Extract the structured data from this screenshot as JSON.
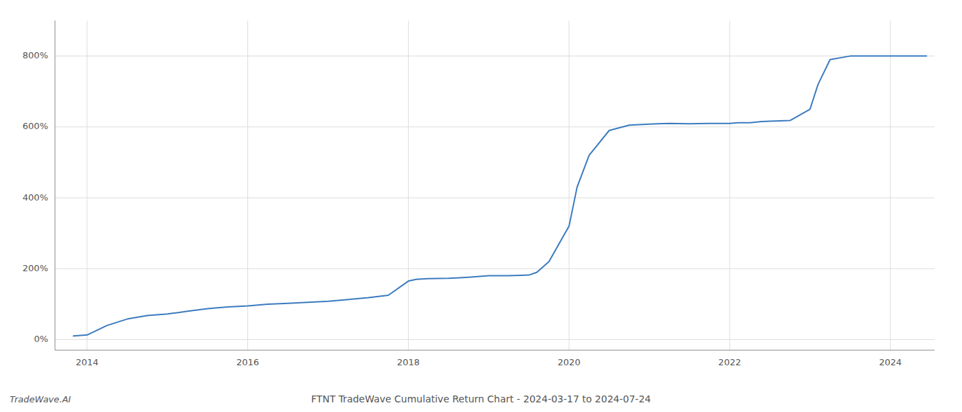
{
  "chart_data": {
    "type": "line",
    "title": "FTNT TradeWave Cumulative Return Chart - 2024-03-17 to 2024-07-24",
    "annotations": [
      "TradeWave.AI"
    ],
    "color": "#3a7abf",
    "grid": true,
    "x": [
      2013.83,
      2014.0,
      2014.25,
      2014.5,
      2014.75,
      2015.0,
      2015.25,
      2015.5,
      2015.75,
      2016.0,
      2016.25,
      2016.5,
      2016.75,
      2017.0,
      2017.1,
      2017.25,
      2017.5,
      2017.75,
      2018.0,
      2018.1,
      2018.25,
      2018.5,
      2018.6,
      2018.75,
      2019.0,
      2019.25,
      2019.5,
      2019.6,
      2019.75,
      2020.0,
      2020.1,
      2020.25,
      2020.5,
      2020.75,
      2021.0,
      2021.1,
      2021.25,
      2021.5,
      2021.75,
      2022.0,
      2022.1,
      2022.25,
      2022.4,
      2022.5,
      2022.75,
      2023.0,
      2023.1,
      2023.25,
      2023.5,
      2023.6,
      2023.75,
      2024.0,
      2024.25,
      2024.45
    ],
    "values": [
      0.1,
      0.13,
      0.4,
      0.58,
      0.68,
      0.72,
      0.8,
      0.87,
      0.92,
      0.95,
      1.0,
      1.02,
      1.05,
      1.08,
      1.1,
      1.13,
      1.18,
      1.25,
      1.65,
      1.7,
      1.72,
      1.73,
      1.74,
      1.76,
      1.8,
      1.8,
      1.82,
      1.9,
      2.2,
      3.2,
      4.3,
      5.2,
      5.9,
      6.05,
      6.08,
      6.09,
      6.1,
      6.09,
      6.1,
      6.1,
      6.12,
      6.12,
      6.15,
      6.16,
      6.18,
      6.5,
      7.2,
      7.9,
      8.0,
      8.0,
      8.0,
      8.0,
      8.0,
      8.0
    ],
    "xlim": [
      2013.6,
      2024.55
    ],
    "ylim": [
      -0.3,
      9.0
    ],
    "xticks": [
      2014,
      2016,
      2018,
      2020,
      2022,
      2024
    ],
    "yticks": [
      {
        "value": 0,
        "label": "0%"
      },
      {
        "value": 2,
        "label": "200%"
      },
      {
        "value": 4,
        "label": "400%"
      },
      {
        "value": 6,
        "label": "600%"
      },
      {
        "value": 8,
        "label": "800%"
      }
    ]
  }
}
